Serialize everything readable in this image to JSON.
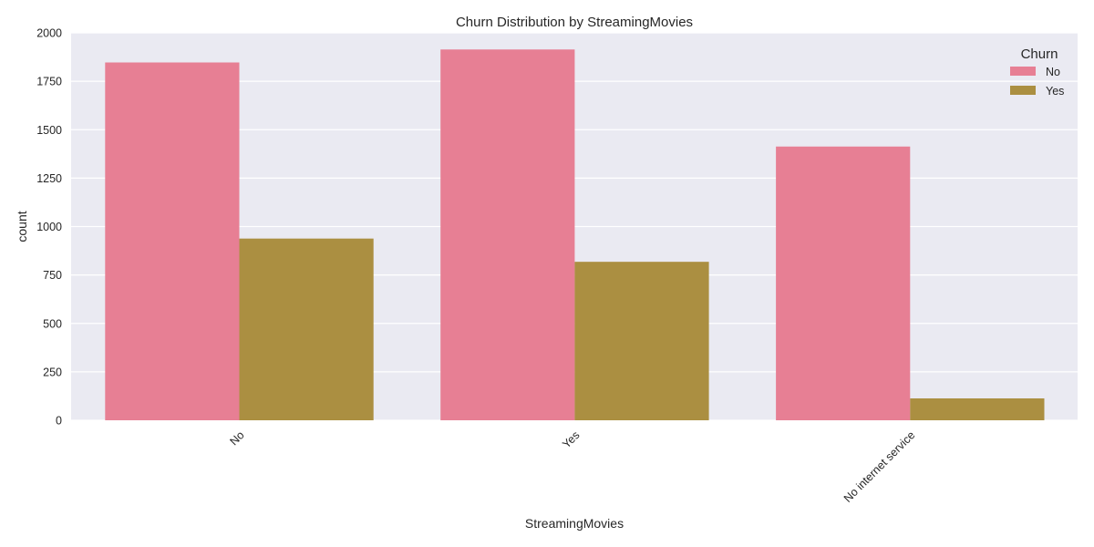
{
  "chart_data": {
    "type": "bar",
    "title": "Churn Distribution by StreamingMovies",
    "xlabel": "StreamingMovies",
    "ylabel": "count",
    "categories": [
      "No",
      "Yes",
      "No internet service"
    ],
    "ylim": [
      0,
      2000
    ],
    "yticks": [
      0,
      250,
      500,
      750,
      1000,
      1250,
      1500,
      1750,
      2000
    ],
    "ytick_labels": [
      "0",
      "250",
      "500",
      "750",
      "1000",
      "1250",
      "1500",
      "1750",
      "2000"
    ],
    "series": [
      {
        "name": "No",
        "values": [
          1847,
          1914,
          1413
        ]
      },
      {
        "name": "Yes",
        "values": [
          938,
          818,
          113
        ]
      }
    ],
    "legend": {
      "title": "Churn",
      "placement": "top-right"
    },
    "grid": true,
    "xtick_rotation_deg": 45,
    "colors": {
      "series": [
        "#e77f94",
        "#ab8f41"
      ],
      "plot_background": "#eaeaf2",
      "gridline": "#ffffff",
      "text": "#262626"
    }
  }
}
